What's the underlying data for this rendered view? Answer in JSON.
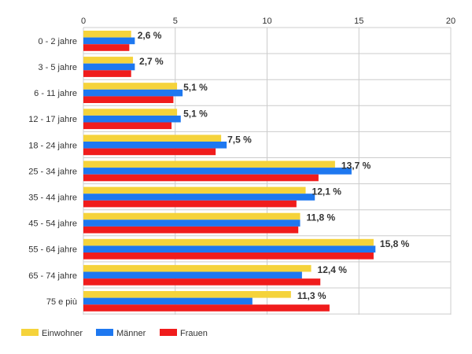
{
  "chart_data": {
    "type": "bar",
    "orientation": "horizontal",
    "xlim": [
      0,
      20
    ],
    "x_ticks": [
      "0",
      "5",
      "10",
      "15",
      "20"
    ],
    "grid": true,
    "legend_position": "bottom-left",
    "categories": [
      "0 - 2 jahre",
      "3 - 5 jahre",
      "6 - 11 jahre",
      "12 - 17 jahre",
      "18 - 24 jahre",
      "25 - 34 jahre",
      "35 - 44 jahre",
      "45 - 54 jahre",
      "55 - 64 jahre",
      "65 - 74 jahre",
      "75 e più"
    ],
    "series": [
      {
        "name": "Einwohner",
        "color": "#f5d33b",
        "values": [
          2.6,
          2.7,
          5.1,
          5.1,
          7.5,
          13.7,
          12.1,
          11.8,
          15.8,
          12.4,
          11.3
        ]
      },
      {
        "name": "Männer",
        "color": "#1e78f0",
        "values": [
          2.8,
          2.8,
          5.4,
          5.3,
          7.8,
          14.6,
          12.6,
          11.8,
          15.9,
          11.9,
          9.2
        ]
      },
      {
        "name": "Frauen",
        "color": "#f01c1c",
        "values": [
          2.5,
          2.6,
          4.9,
          4.8,
          7.2,
          12.8,
          11.6,
          11.7,
          15.8,
          12.9,
          13.4
        ]
      }
    ],
    "data_labels": [
      "2,6 %",
      "2,7 %",
      "5,1 %",
      "5,1 %",
      "7,5 %",
      "13,7 %",
      "12,1 %",
      "11,8 %",
      "15,8 %",
      "12,4 %",
      "11,3 %"
    ]
  }
}
